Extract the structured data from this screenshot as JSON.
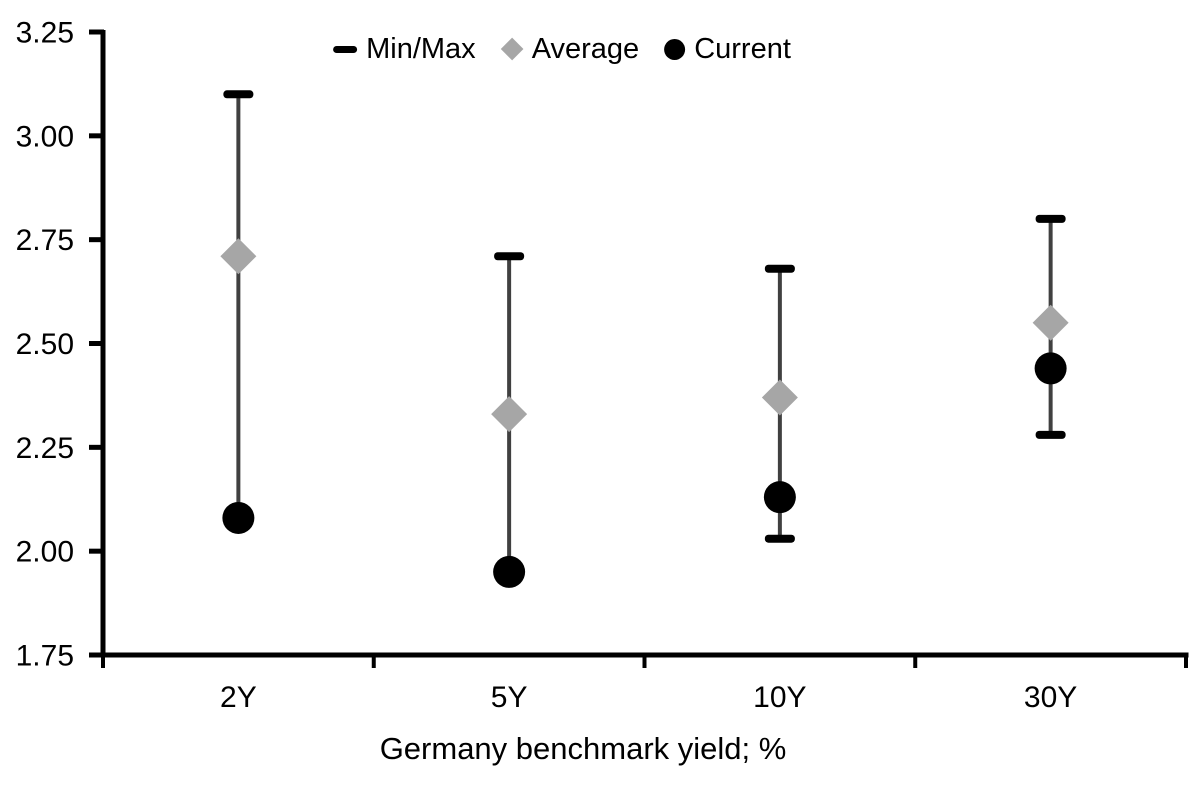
{
  "chart_data": {
    "type": "scatter",
    "subtype": "min-max-range-with-markers",
    "categories": [
      "2Y",
      "5Y",
      "10Y",
      "30Y"
    ],
    "series": [
      {
        "name": "Min/Max",
        "marker": "dash-range",
        "max": [
          3.1,
          2.71,
          2.68,
          2.8
        ],
        "min": [
          2.08,
          1.95,
          2.03,
          2.28
        ]
      },
      {
        "name": "Average",
        "marker": "diamond",
        "values": [
          2.71,
          2.33,
          2.37,
          2.55
        ]
      },
      {
        "name": "Current",
        "marker": "circle",
        "values": [
          2.08,
          1.95,
          2.13,
          2.44
        ]
      }
    ],
    "xlabel": "Germany benchmark yield; %",
    "ylabel": "",
    "ylim": [
      1.75,
      3.25
    ],
    "ytick_step": 0.25,
    "ytick_labels": [
      "3.25",
      "3.00",
      "2.75",
      "2.50",
      "2.25",
      "2.00",
      "1.75"
    ],
    "grid": false,
    "legend_position": "top-center",
    "colors": {
      "axis": "#000000",
      "text": "#000000",
      "whisker_line": "#404040",
      "minmax_cap": "#000000",
      "average_marker": "#a6a6a6",
      "current_marker": "#000000",
      "background": "#ffffff"
    }
  }
}
